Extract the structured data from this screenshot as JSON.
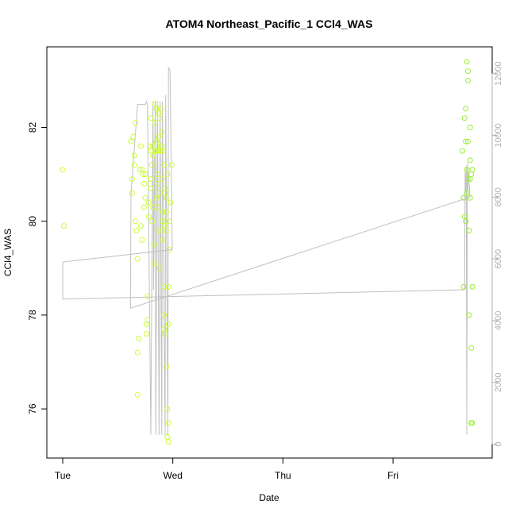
{
  "chart_data": {
    "type": "scatter",
    "title": "ATOM4 Northeast_Pacific_1 CCl4_WAS",
    "xlabel": "Date",
    "ylabel": "CCl4_WAS",
    "x_ticks": [
      "Tue",
      "Wed",
      "Thu",
      "Fri"
    ],
    "xlim_days": [
      -0.15,
      3.85
    ],
    "ylim": [
      75.0,
      84.0
    ],
    "y_ticks": [
      76,
      78,
      80,
      82
    ],
    "y2lim": [
      -300,
      12800
    ],
    "y2_ticks": [
      0,
      2000,
      4000,
      6000,
      8000,
      10000,
      12000
    ],
    "series": [
      {
        "name": "CCl4_WAS",
        "color_early": "#ccff33",
        "color_late": "#99ee33",
        "points": [
          [
            0.0,
            81.1
          ],
          [
            0.01,
            79.9
          ],
          [
            0.62,
            81.7
          ],
          [
            0.63,
            80.9
          ],
          [
            0.63,
            80.6
          ],
          [
            0.64,
            81.8
          ],
          [
            0.65,
            81.2
          ],
          [
            0.65,
            81.4
          ],
          [
            0.66,
            82.1
          ],
          [
            0.66,
            80.0
          ],
          [
            0.67,
            79.8
          ],
          [
            0.68,
            79.2
          ],
          [
            0.68,
            76.3
          ],
          [
            0.68,
            77.2
          ],
          [
            0.69,
            77.5
          ],
          [
            0.7,
            81.1
          ],
          [
            0.71,
            81.6
          ],
          [
            0.71,
            79.9
          ],
          [
            0.72,
            81.1
          ],
          [
            0.72,
            79.6
          ],
          [
            0.73,
            81.0
          ],
          [
            0.74,
            80.8
          ],
          [
            0.74,
            80.3
          ],
          [
            0.75,
            81.0
          ],
          [
            0.75,
            80.5
          ],
          [
            0.76,
            77.6
          ],
          [
            0.76,
            77.8
          ],
          [
            0.77,
            77.9
          ],
          [
            0.77,
            78.4
          ],
          [
            0.78,
            80.1
          ],
          [
            0.78,
            80.4
          ],
          [
            0.79,
            81.6
          ],
          [
            0.8,
            81.5
          ],
          [
            0.8,
            82.2
          ],
          [
            0.8,
            80.9
          ],
          [
            0.8,
            80.7
          ],
          [
            0.81,
            80.0
          ],
          [
            0.81,
            81.2
          ],
          [
            0.82,
            81.6
          ],
          [
            0.82,
            81.4
          ],
          [
            0.82,
            80.3
          ],
          [
            0.83,
            79.5
          ],
          [
            0.83,
            79.1
          ],
          [
            0.84,
            81.5
          ],
          [
            0.84,
            82.1
          ],
          [
            0.84,
            82.5
          ],
          [
            0.85,
            82.4
          ],
          [
            0.85,
            81.7
          ],
          [
            0.85,
            81.5
          ],
          [
            0.85,
            80.5
          ],
          [
            0.86,
            80.3
          ],
          [
            0.86,
            80.8
          ],
          [
            0.86,
            81.0
          ],
          [
            0.87,
            81.5
          ],
          [
            0.87,
            82.3
          ],
          [
            0.87,
            81.8
          ],
          [
            0.87,
            79.8
          ],
          [
            0.88,
            80.6
          ],
          [
            0.88,
            79.0
          ],
          [
            0.88,
            82.2
          ],
          [
            0.89,
            81.6
          ],
          [
            0.89,
            81.5
          ],
          [
            0.89,
            82.4
          ],
          [
            0.9,
            81.9
          ],
          [
            0.9,
            81.6
          ],
          [
            0.9,
            80.9
          ],
          [
            0.9,
            80.0
          ],
          [
            0.91,
            81.5
          ],
          [
            0.91,
            80.2
          ],
          [
            0.91,
            79.6
          ],
          [
            0.92,
            79.9
          ],
          [
            0.92,
            81.2
          ],
          [
            0.92,
            78.6
          ],
          [
            0.92,
            77.7
          ],
          [
            0.92,
            78.0
          ],
          [
            0.93,
            77.6
          ],
          [
            0.93,
            80.7
          ],
          [
            0.93,
            80.6
          ],
          [
            0.94,
            80.5
          ],
          [
            0.94,
            80.2
          ],
          [
            0.94,
            79.8
          ],
          [
            0.94,
            76.9
          ],
          [
            0.95,
            76.0
          ],
          [
            0.95,
            75.4
          ],
          [
            0.95,
            75.4
          ],
          [
            0.96,
            75.3
          ],
          [
            0.96,
            75.7
          ],
          [
            0.96,
            77.8
          ],
          [
            0.96,
            78.6
          ],
          [
            0.97,
            80.0
          ],
          [
            0.97,
            79.4
          ],
          [
            0.98,
            80.4
          ],
          [
            0.99,
            81.2
          ],
          [
            0.95,
            81.0
          ],
          [
            0.93,
            80.0
          ],
          [
            3.63,
            81.5
          ],
          [
            3.64,
            80.5
          ],
          [
            3.64,
            78.6
          ],
          [
            3.65,
            82.2
          ],
          [
            3.65,
            80.1
          ],
          [
            3.66,
            80.0
          ],
          [
            3.66,
            81.7
          ],
          [
            3.66,
            82.4
          ],
          [
            3.67,
            83.4
          ],
          [
            3.67,
            81.1
          ],
          [
            3.67,
            80.6
          ],
          [
            3.68,
            83.0
          ],
          [
            3.68,
            83.2
          ],
          [
            3.68,
            81.7
          ],
          [
            3.68,
            80.9
          ],
          [
            3.69,
            78.0
          ],
          [
            3.69,
            79.8
          ],
          [
            3.7,
            80.5
          ],
          [
            3.7,
            80.9
          ],
          [
            3.7,
            81.3
          ],
          [
            3.7,
            82.0
          ],
          [
            3.71,
            81.0
          ],
          [
            3.71,
            77.3
          ],
          [
            3.71,
            75.7
          ],
          [
            3.72,
            75.7
          ],
          [
            3.72,
            78.6
          ],
          [
            3.72,
            81.1
          ]
        ]
      },
      {
        "name": "",
        "axis": "right",
        "color": "#c0c0c0",
        "points": [
          [
            0.0,
            5900
          ],
          [
            0.0,
            5200
          ],
          [
            0.0,
            4700
          ],
          [
            3.65,
            5000
          ],
          [
            3.655,
            8800
          ],
          [
            3.66,
            8200
          ],
          [
            3.665,
            9000
          ],
          [
            3.67,
            300
          ],
          [
            3.675,
            9100
          ],
          [
            3.68,
            8200
          ],
          [
            3.685,
            8800
          ],
          [
            3.69,
            8500
          ],
          [
            3.7,
            8000
          ],
          [
            0.615,
            4400
          ],
          [
            0.62,
            8100
          ],
          [
            0.68,
            11000
          ],
          [
            0.75,
            11000
          ],
          [
            0.76,
            11100
          ],
          [
            0.77,
            11000
          ],
          [
            0.8,
            300
          ],
          [
            0.82,
            11100
          ],
          [
            0.825,
            5000
          ],
          [
            0.84,
            11100
          ],
          [
            0.845,
            300
          ],
          [
            0.86,
            11100
          ],
          [
            0.875,
            300
          ],
          [
            0.885,
            11100
          ],
          [
            0.9,
            300
          ],
          [
            0.905,
            11100
          ],
          [
            0.93,
            300
          ],
          [
            0.935,
            11300
          ],
          [
            0.955,
            300
          ],
          [
            0.96,
            12200
          ],
          [
            0.975,
            12100
          ],
          [
            0.995,
            6300
          ],
          [
            0.0,
            5900
          ]
        ]
      }
    ]
  }
}
